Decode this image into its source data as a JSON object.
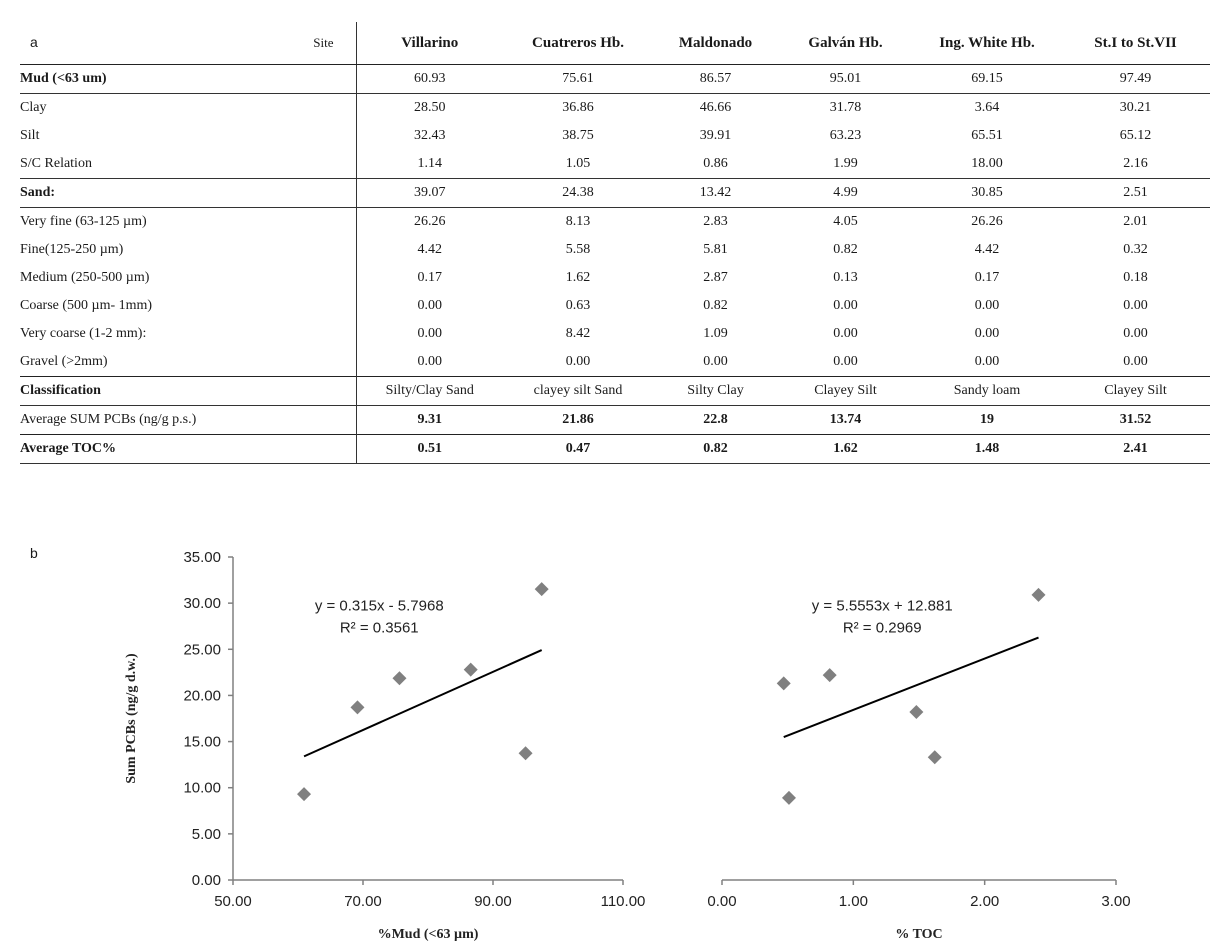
{
  "panel_a": {
    "label": "a",
    "site_label": "Site",
    "sites": [
      "Villarino",
      "Cuatreros Hb.",
      "Maldonado",
      "Galván Hb.",
      "Ing. White Hb.",
      "St.I to St.VII"
    ],
    "rows": [
      {
        "label": "Mud (<63 um)",
        "values": [
          "60.93",
          "75.61",
          "86.57",
          "95.01",
          "69.15",
          "97.49"
        ],
        "bold_label": true,
        "bold_values": false,
        "rule_below": true
      },
      {
        "label": "Clay",
        "values": [
          "28.50",
          "36.86",
          "46.66",
          "31.78",
          "3.64",
          "30.21"
        ]
      },
      {
        "label": "Silt",
        "values": [
          "32.43",
          "38.75",
          "39.91",
          "63.23",
          "65.51",
          "65.12"
        ]
      },
      {
        "label": "S/C Relation",
        "values": [
          "1.14",
          "1.05",
          "0.86",
          "1.99",
          "18.00",
          "2.16"
        ],
        "rule_below": true
      },
      {
        "label": "Sand:",
        "values": [
          "39.07",
          "24.38",
          "13.42",
          "4.99",
          "30.85",
          "2.51"
        ],
        "bold_label": true,
        "bold_values": false,
        "rule_below": true
      },
      {
        "label": "Very fine  (63-125  µm)",
        "values": [
          "26.26",
          "8.13",
          "2.83",
          "4.05",
          "26.26",
          "2.01"
        ]
      },
      {
        "label": "Fine(125-250 µm)",
        "values": [
          "4.42",
          "5.58",
          "5.81",
          "0.82",
          "4.42",
          "0.32"
        ]
      },
      {
        "label": "Medium (250-500 µm)",
        "values": [
          "0.17",
          "1.62",
          "2.87",
          "0.13",
          "0.17",
          "0.18"
        ]
      },
      {
        "label": "Coarse (500 µm- 1mm)",
        "values": [
          "0.00",
          "0.63",
          "0.82",
          "0.00",
          "0.00",
          "0.00"
        ]
      },
      {
        "label": "Very coarse (1-2 mm):",
        "values": [
          "0.00",
          "8.42",
          "1.09",
          "0.00",
          "0.00",
          "0.00"
        ]
      },
      {
        "label": "Gravel (>2mm)",
        "values": [
          "0.00",
          "0.00",
          "0.00",
          "0.00",
          "0.00",
          "0.00"
        ]
      },
      {
        "label": "Classification",
        "values": [
          "Silty/Clay Sand",
          "clayey silt Sand",
          "Silty Clay",
          "Clayey Silt",
          "Sandy loam",
          "Clayey Silt"
        ],
        "bold_label": true,
        "bold_values": false,
        "rule_above": true,
        "rule_below": true
      },
      {
        "label": "Average SUM PCBs (ng/g p.s.)",
        "values": [
          "9.31",
          "21.86",
          "22.8",
          "13.74",
          "19",
          "31.52"
        ],
        "bold_label": false,
        "bold_values": true
      },
      {
        "label": "Average TOC%",
        "values": [
          "0.51",
          "0.47",
          "0.82",
          "1.62",
          "1.48",
          "2.41"
        ],
        "bold_label": true,
        "bold_values": true,
        "rule_above": true,
        "rule_below": true
      }
    ]
  },
  "panel_b": {
    "label": "b"
  },
  "colors": {
    "marker": "#808080",
    "line": "#000000",
    "axis": "#808080"
  },
  "chart_data": [
    {
      "type": "scatter",
      "title": "",
      "xlabel": "%Mud (<63 µm)",
      "ylabel": "Sum PCBs (ng/g d.w.)",
      "xlim": [
        50,
        110
      ],
      "ylim": [
        0,
        35
      ],
      "xticks": [
        "50.00",
        "70.00",
        "90.00",
        "110.00"
      ],
      "yticks": [
        "0.00",
        "5.00",
        "10.00",
        "15.00",
        "20.00",
        "25.00",
        "30.00",
        "35.00"
      ],
      "x": [
        60.93,
        69.15,
        75.61,
        86.57,
        95.01,
        97.49
      ],
      "y": [
        9.31,
        18.7,
        21.86,
        22.8,
        13.74,
        31.52
      ],
      "trendline": {
        "slope": 0.315,
        "intercept": -5.7968,
        "x_range": [
          60.93,
          97.49
        ]
      },
      "equation": "y = 0.315x - 5.7968",
      "r2": "R² = 0.3561",
      "grid": false,
      "legend": "none"
    },
    {
      "type": "scatter",
      "title": "",
      "xlabel": "% TOC",
      "ylabel": "",
      "xlim": [
        0,
        3
      ],
      "ylim": [
        0,
        35
      ],
      "xticks": [
        "0.00",
        "1.00",
        "2.00",
        "3.00"
      ],
      "x": [
        0.47,
        0.51,
        0.82,
        1.48,
        1.62,
        2.41
      ],
      "y": [
        21.3,
        8.9,
        22.2,
        18.2,
        13.3,
        30.9
      ],
      "trendline": {
        "slope": 5.5553,
        "intercept": 12.881,
        "x_range": [
          0.47,
          2.41
        ]
      },
      "equation": "y = 5.5553x + 12.881",
      "r2": "R² = 0.2969",
      "grid": false,
      "legend": "none"
    }
  ]
}
